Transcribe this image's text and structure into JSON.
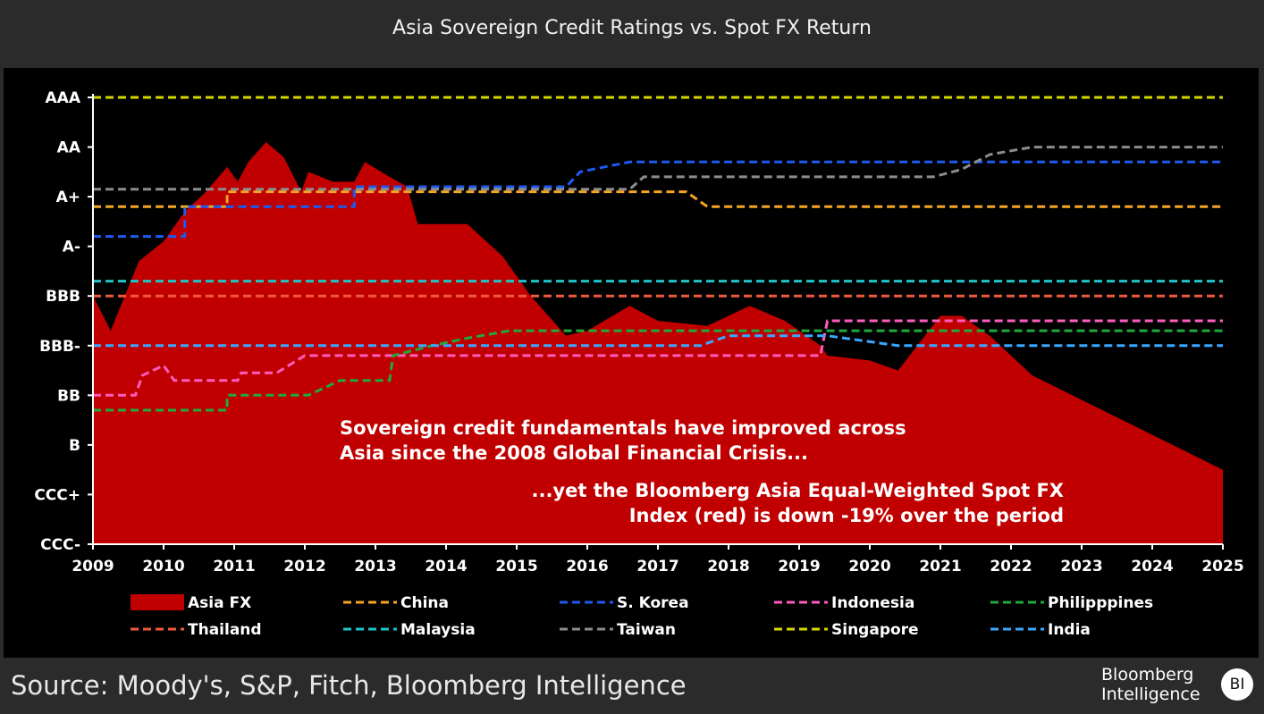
{
  "chart_data": {
    "type": "line",
    "title": "Asia Sovereign Credit Ratings vs. Spot FX Return",
    "rating_scale": [
      "CCC-",
      "CCC+",
      "B",
      "BB",
      "BBB-",
      "BBB",
      "A-",
      "A+",
      "AA",
      "AAA"
    ],
    "x_ticks": [
      "2009",
      "2010",
      "2011",
      "2012",
      "2013",
      "2014",
      "2015",
      "2016",
      "2017",
      "2018",
      "2019",
      "2020",
      "2021",
      "2022",
      "2023",
      "2024",
      "2025"
    ],
    "xlim": [
      2009,
      2025
    ],
    "grid": false,
    "legend_position": "bottom",
    "area_series": {
      "name": "Asia FX",
      "color": "#c00000",
      "points": [
        [
          2009.0,
          5.0
        ],
        [
          2009.25,
          4.3
        ],
        [
          2009.65,
          5.7
        ],
        [
          2010.0,
          6.1
        ],
        [
          2010.3,
          6.7
        ],
        [
          2010.6,
          7.1
        ],
        [
          2010.9,
          7.6
        ],
        [
          2011.05,
          7.3
        ],
        [
          2011.2,
          7.7
        ],
        [
          2011.45,
          8.1
        ],
        [
          2011.7,
          7.8
        ],
        [
          2011.95,
          7.1
        ],
        [
          2012.05,
          7.5
        ],
        [
          2012.4,
          7.3
        ],
        [
          2012.7,
          7.3
        ],
        [
          2012.85,
          7.7
        ],
        [
          2013.2,
          7.4
        ],
        [
          2013.45,
          7.2
        ],
        [
          2013.6,
          6.45
        ],
        [
          2014.3,
          6.45
        ],
        [
          2014.8,
          5.8
        ],
        [
          2015.2,
          5.0
        ],
        [
          2015.7,
          4.2
        ],
        [
          2016.0,
          4.3
        ],
        [
          2016.6,
          4.8
        ],
        [
          2017.0,
          4.5
        ],
        [
          2017.7,
          4.4
        ],
        [
          2018.3,
          4.8
        ],
        [
          2018.8,
          4.5
        ],
        [
          2019.3,
          4.0
        ],
        [
          2019.4,
          3.8
        ],
        [
          2020.0,
          3.7
        ],
        [
          2020.4,
          3.5
        ],
        [
          2021.0,
          4.6
        ],
        [
          2021.3,
          4.6
        ],
        [
          2021.7,
          4.2
        ],
        [
          2022.3,
          3.4
        ],
        [
          2025.0,
          1.5
        ]
      ]
    },
    "series": [
      {
        "name": "China",
        "color": "#f5a623",
        "points": [
          [
            2009.0,
            6.8
          ],
          [
            2010.9,
            6.8
          ],
          [
            2010.9,
            7.1
          ],
          [
            2017.4,
            7.1
          ],
          [
            2017.7,
            6.8
          ],
          [
            2025.0,
            6.8
          ]
        ]
      },
      {
        "name": "S. Korea",
        "color": "#1f5af0",
        "points": [
          [
            2009.0,
            6.2
          ],
          [
            2010.3,
            6.2
          ],
          [
            2010.3,
            6.8
          ],
          [
            2012.7,
            6.8
          ],
          [
            2012.7,
            7.2
          ],
          [
            2015.7,
            7.2
          ],
          [
            2015.9,
            7.5
          ],
          [
            2016.6,
            7.7
          ],
          [
            2025.0,
            7.7
          ]
        ]
      },
      {
        "name": "Indonesia",
        "color": "#ff5cbf",
        "points": [
          [
            2009.0,
            3.0
          ],
          [
            2009.6,
            3.0
          ],
          [
            2009.7,
            3.4
          ],
          [
            2010.0,
            3.6
          ],
          [
            2010.15,
            3.3
          ],
          [
            2011.05,
            3.3
          ],
          [
            2011.1,
            3.45
          ],
          [
            2011.6,
            3.45
          ],
          [
            2012.0,
            3.8
          ],
          [
            2019.3,
            3.8
          ],
          [
            2019.4,
            4.5
          ],
          [
            2025.0,
            4.5
          ]
        ]
      },
      {
        "name": "Philipppines",
        "color": "#1faa3a",
        "points": [
          [
            2009.0,
            2.7
          ],
          [
            2010.9,
            2.7
          ],
          [
            2010.9,
            3.0
          ],
          [
            2012.05,
            3.0
          ],
          [
            2012.5,
            3.3
          ],
          [
            2013.2,
            3.3
          ],
          [
            2013.25,
            3.8
          ],
          [
            2013.8,
            4.0
          ],
          [
            2014.3,
            4.15
          ],
          [
            2014.9,
            4.3
          ],
          [
            2025.0,
            4.3
          ]
        ]
      },
      {
        "name": "Thailand",
        "color": "#f05a3c",
        "points": [
          [
            2009.0,
            5.0
          ],
          [
            2025.0,
            5.0
          ]
        ]
      },
      {
        "name": "Malaysia",
        "color": "#20c4c8",
        "points": [
          [
            2009.0,
            5.3
          ],
          [
            2025.0,
            5.3
          ]
        ]
      },
      {
        "name": "Taiwan",
        "color": "#8c8c8c",
        "points": [
          [
            2009.0,
            7.15
          ],
          [
            2016.6,
            7.15
          ],
          [
            2016.8,
            7.4
          ],
          [
            2020.9,
            7.4
          ],
          [
            2021.3,
            7.55
          ],
          [
            2021.7,
            7.85
          ],
          [
            2022.3,
            8.0
          ],
          [
            2025.0,
            8.0
          ]
        ]
      },
      {
        "name": "Singapore",
        "color": "#d6d600",
        "points": [
          [
            2009.0,
            9.0
          ],
          [
            2025.0,
            9.0
          ]
        ]
      },
      {
        "name": "India",
        "color": "#3aa7ff",
        "points": [
          [
            2009.0,
            4.0
          ],
          [
            2017.6,
            4.0
          ],
          [
            2018.0,
            4.2
          ],
          [
            2019.4,
            4.2
          ],
          [
            2020.4,
            4.0
          ],
          [
            2025.0,
            4.0
          ]
        ]
      }
    ],
    "annotations": [
      "Sovereign credit fundamentals have improved across",
      "Asia since the 2008 Global Financial Crisis...",
      "...yet the Bloomberg Asia Equal-Weighted Spot FX",
      "Index (red) is down -19% over the period"
    ]
  },
  "footer": {
    "source": "Source: Moody's, S&P, Fitch, Bloomberg Intelligence",
    "brand_line1": "Bloomberg",
    "brand_line2": "Intelligence",
    "badge": "BI"
  }
}
